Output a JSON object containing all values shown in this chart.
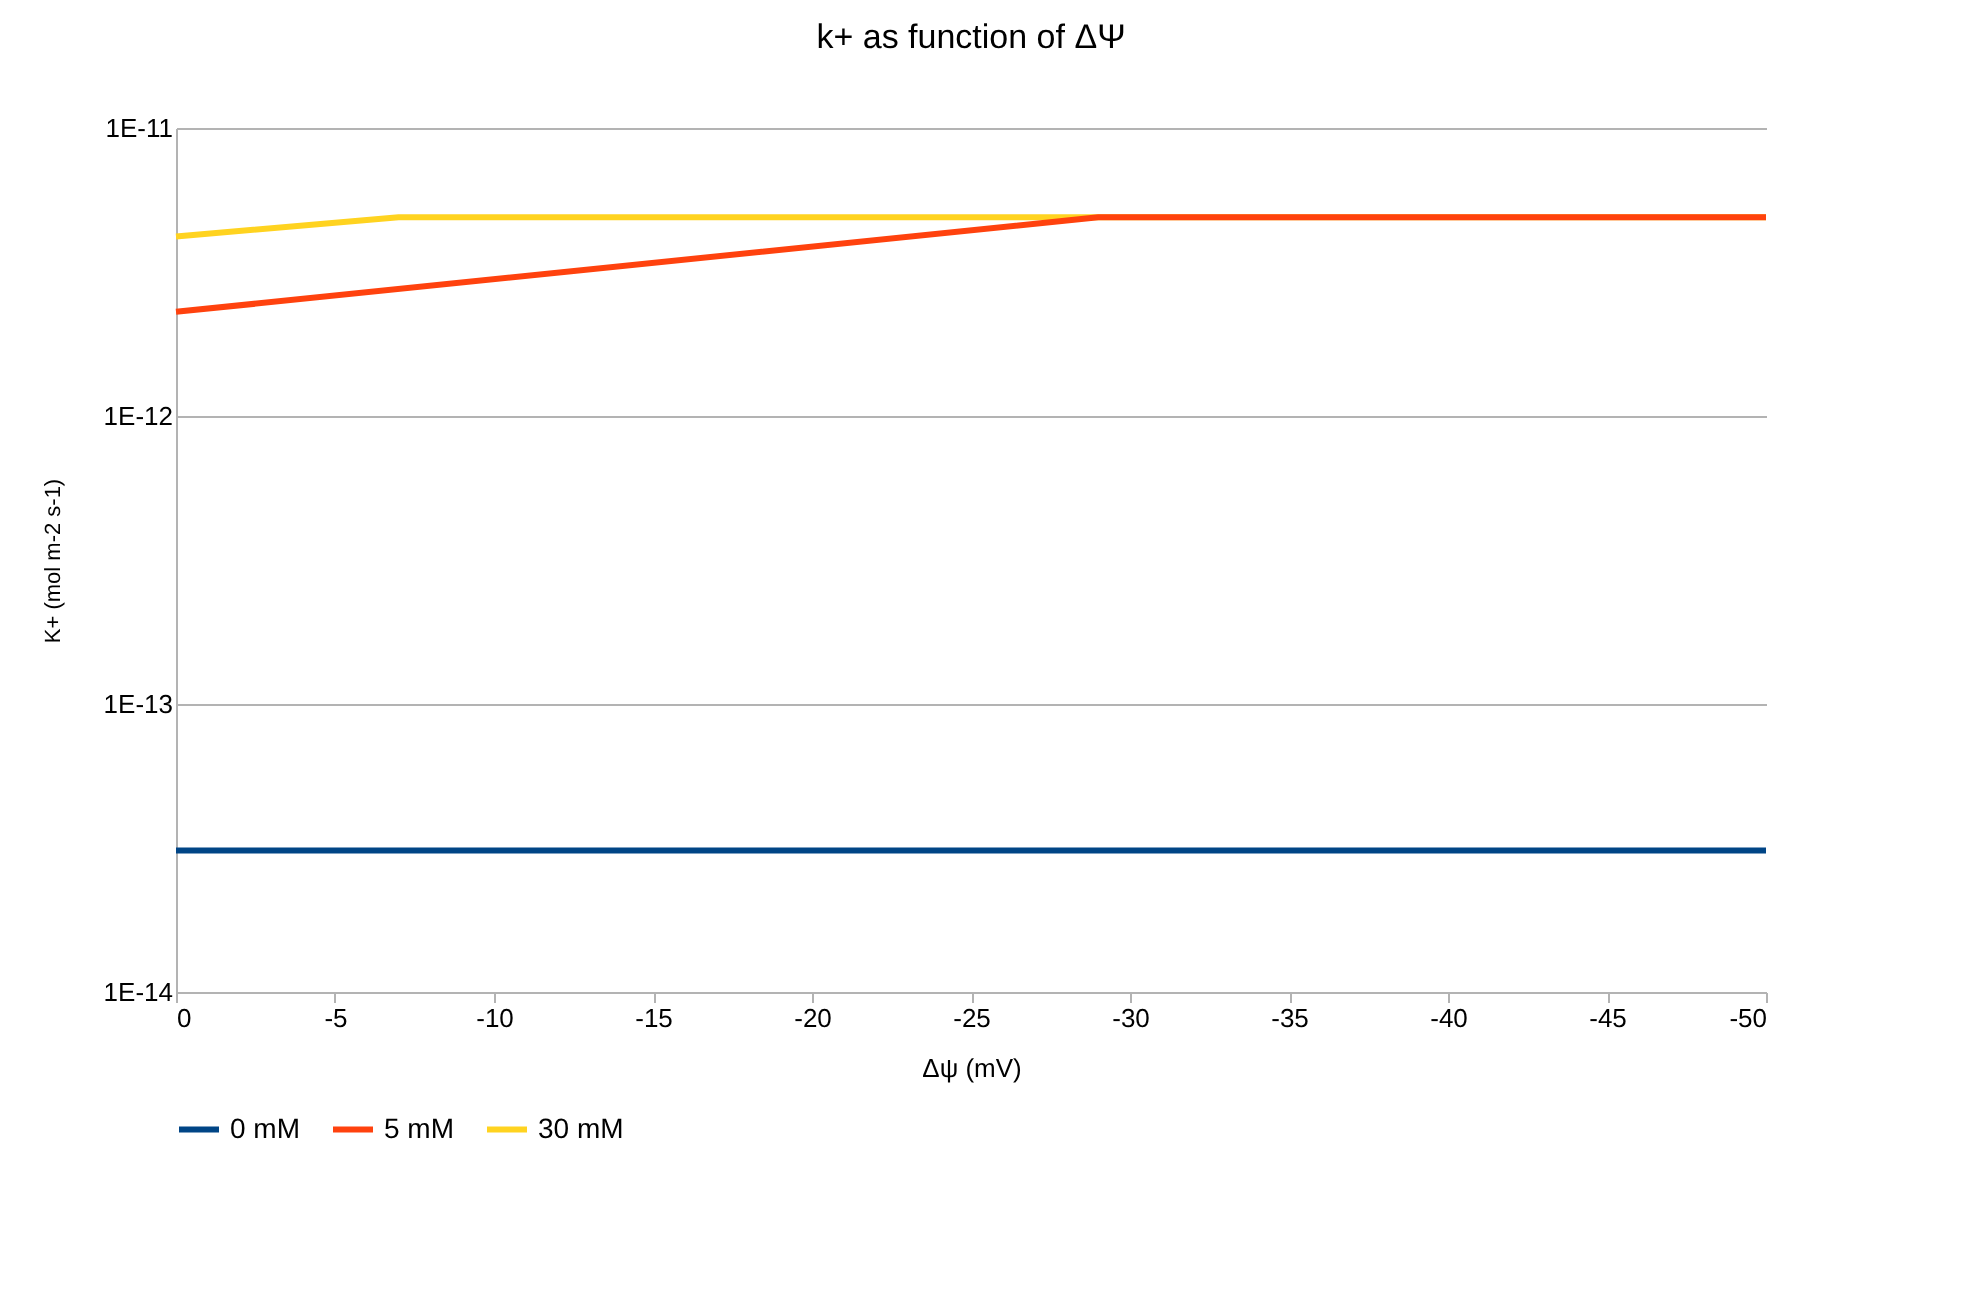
{
  "chart_data": {
    "type": "line",
    "title": "k+ as function of  ΔΨ",
    "xlabel": "Δψ (mV)",
    "ylabel": "K+ (mol m-2 s-1)",
    "log": "y",
    "grid": "y",
    "legend": "bottom",
    "marker": "none",
    "line_style": "solid",
    "xlim": [
      0,
      -50
    ],
    "xticks": [
      0,
      -5,
      -10,
      -15,
      -20,
      -25,
      -30,
      -35,
      -40,
      -45,
      -50
    ],
    "ylim": [
      1e-14,
      1e-11
    ],
    "yticks": [
      {
        "value": 1e-14,
        "label": "1E-14"
      },
      {
        "value": 1e-13,
        "label": "1E-13"
      },
      {
        "value": 1e-12,
        "label": "1E-12"
      },
      {
        "value": 1e-11,
        "label": "1E-11"
      }
    ],
    "series": [
      {
        "name": "0 mM",
        "color": "#004586",
        "x": [
          0,
          -50
        ],
        "values": [
          3.1e-14,
          3.1e-14
        ]
      },
      {
        "name": "5 mM",
        "color": "#ff420e",
        "x": [
          0,
          -29,
          -50
        ],
        "values": [
          2.3e-12,
          4.9e-12,
          4.9e-12
        ]
      },
      {
        "name": "30 mM",
        "color": "#ffd320",
        "x": [
          0,
          -7,
          -50
        ],
        "values": [
          4.2e-12,
          4.9e-12,
          4.9e-12
        ]
      }
    ]
  }
}
